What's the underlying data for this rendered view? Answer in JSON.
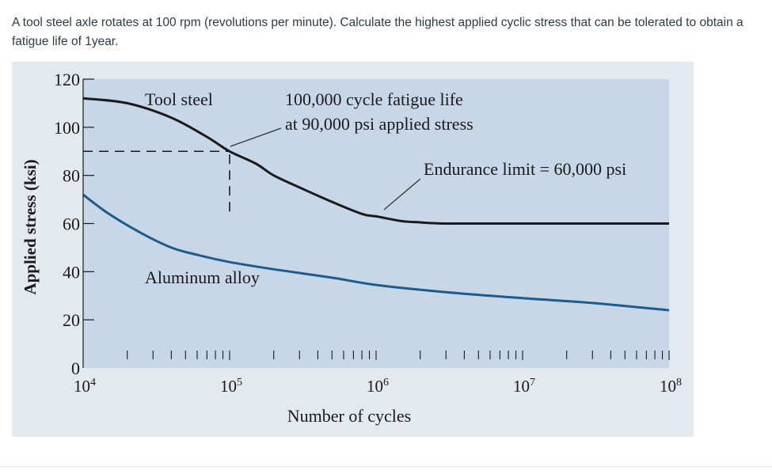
{
  "question": {
    "line1": "A tool steel axle rotates at 100 rpm (revolutions per minute). Calculate the highest applied cyclic stress that can be tolerated to obtain a",
    "line2": "fatigue life of 1year."
  },
  "chart_data": {
    "type": "line",
    "title": "",
    "xlabel": "Number of cycles",
    "ylabel": "Applied stress (ksi)",
    "xscale": "log",
    "xlim": [
      10000,
      100000000
    ],
    "ylim": [
      0,
      120
    ],
    "yticks": [
      0,
      20,
      40,
      60,
      80,
      100,
      120
    ],
    "xticks": [
      {
        "value": 10000,
        "base": "10",
        "exp": "4"
      },
      {
        "value": 100000,
        "base": "10",
        "exp": "5"
      },
      {
        "value": 1000000,
        "base": "10",
        "exp": "6"
      },
      {
        "value": 10000000,
        "base": "10",
        "exp": "7"
      },
      {
        "value": 100000000,
        "base": "10",
        "exp": "8"
      }
    ],
    "series": [
      {
        "name": "Tool steel",
        "color": "#1a1a1a",
        "points": [
          [
            10000,
            112
          ],
          [
            20000,
            110
          ],
          [
            40000,
            104
          ],
          [
            70000,
            96
          ],
          [
            100000,
            90
          ],
          [
            150000,
            85
          ],
          [
            200000,
            80
          ],
          [
            300000,
            75
          ],
          [
            500000,
            69
          ],
          [
            800000,
            64
          ],
          [
            1000000,
            63
          ],
          [
            1500000,
            61
          ],
          [
            2000000,
            60.5
          ],
          [
            3000000,
            60
          ],
          [
            10000000,
            60
          ],
          [
            100000000,
            60
          ]
        ]
      },
      {
        "name": "Aluminum alloy",
        "color": "#1b5c8c",
        "points": [
          [
            10000,
            72
          ],
          [
            15000,
            64
          ],
          [
            25000,
            56
          ],
          [
            40000,
            50
          ],
          [
            60000,
            47
          ],
          [
            100000,
            44
          ],
          [
            200000,
            41
          ],
          [
            500000,
            37.5
          ],
          [
            1000000,
            34.5
          ],
          [
            3000000,
            31.5
          ],
          [
            10000000,
            29
          ],
          [
            30000000,
            27
          ],
          [
            100000000,
            24
          ]
        ]
      }
    ],
    "reference_lines": [
      {
        "type": "horizontal",
        "y": 90,
        "from_x": 10000,
        "to_x": 100000,
        "style": "dashed"
      },
      {
        "type": "vertical",
        "x": 100000,
        "from_y": 65,
        "to_y": 90,
        "style": "dashed"
      }
    ],
    "annotations": [
      {
        "id": "tool_steel",
        "text": "Tool steel"
      },
      {
        "id": "fatigue_life_1",
        "text": "100,000 cycle fatigue life"
      },
      {
        "id": "fatigue_life_2",
        "text": "at 90,000 psi applied stress"
      },
      {
        "id": "endurance",
        "text": "Endurance limit = 60,000 psi"
      },
      {
        "id": "aluminum",
        "text": "Aluminum alloy"
      }
    ],
    "grid": false
  },
  "colors": {
    "plot_background": "#c8d7e8",
    "figure_background": "#e4e8ef",
    "tool_steel": "#1a1a1a",
    "aluminum": "#1b5c8c"
  }
}
